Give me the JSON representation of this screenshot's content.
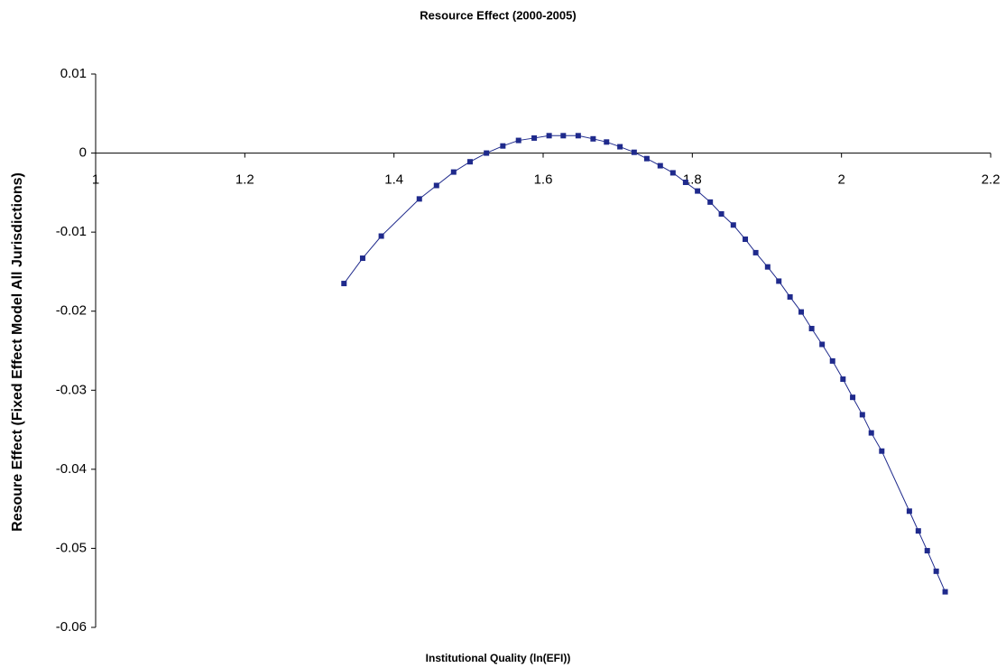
{
  "chart_data": {
    "type": "scatter-line",
    "title": "Resource Effect (2000-2005)",
    "x_label": "Institutional Quality (ln(EFI))",
    "y_label": "Resoure Effect (Fixed Effect Model All Jurisdictions)",
    "color": "#1f2a8c",
    "series": [
      {
        "name": "Resource Effect",
        "color": "#1f2a8c",
        "x": [
          1.333,
          1.358,
          1.383,
          1.434,
          1.457,
          1.48,
          1.502,
          1.524,
          1.546,
          1.567,
          1.588,
          1.608,
          1.627,
          1.647,
          1.667,
          1.685,
          1.703,
          1.722,
          1.739,
          1.757,
          1.774,
          1.791,
          1.807,
          1.824,
          1.839,
          1.855,
          1.871,
          1.885,
          1.901,
          1.916,
          1.931,
          1.946,
          1.96,
          1.974,
          1.988,
          2.002,
          2.015,
          2.028,
          2.04,
          2.054,
          2.091,
          2.103,
          2.115,
          2.127,
          2.139
        ],
        "values": [
          -0.0165,
          -0.0133,
          -0.0105,
          -0.0058,
          -0.0041,
          -0.0024,
          -0.0011,
          0,
          0.0009,
          0.0016,
          0.0019,
          0.0022,
          0.0022,
          0.0022,
          0.0018,
          0.0014,
          0.0008,
          0.0001,
          -0.0007,
          -0.0016,
          -0.0025,
          -0.0037,
          -0.0048,
          -0.0062,
          -0.0077,
          -0.0091,
          -0.0109,
          -0.0126,
          -0.0144,
          -0.0162,
          -0.0182,
          -0.0201,
          -0.0222,
          -0.0242,
          -0.0263,
          -0.0286,
          -0.0309,
          -0.0331,
          -0.0354,
          -0.0377,
          -0.0453,
          -0.0478,
          -0.0503,
          -0.0529,
          -0.0555
        ]
      }
    ],
    "xlim": [
      1,
      2.2
    ],
    "xticks": [
      1,
      1.2,
      1.4,
      1.6,
      1.8,
      2,
      2.2
    ],
    "ylim": [
      -0.06,
      0.01
    ],
    "yticks": [
      0.01,
      0,
      -0.01,
      -0.02,
      -0.03,
      -0.04,
      -0.05,
      -0.06
    ],
    "grid": false
  }
}
